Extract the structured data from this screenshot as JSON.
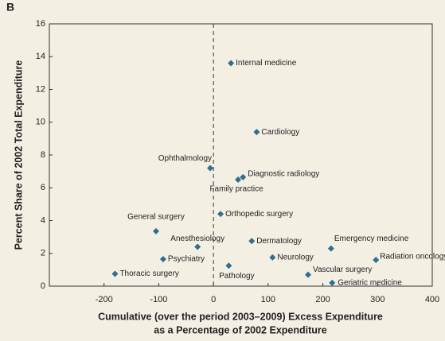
{
  "chart_data": {
    "type": "scatter",
    "panel": "B",
    "y_label": "Percent Share of 2002 Total Expenditure",
    "x_label": [
      "Cumulative (over the period 2003–2009) Excess Expenditure",
      "as a Percentage of 2002 Expenditure"
    ],
    "labels": [
      "Internal medicine",
      "Cardiology",
      "Ophthalmology",
      "Diagnostic radiology",
      "Family practice",
      "Orthopedic surgery",
      "General surgery",
      "Anesthesiology",
      "Dermatology",
      "Emergency medicine",
      "Radiation oncology",
      "Psychiatry",
      "Neurology",
      "Pathology",
      "Thoracic surgery",
      "Vascular surgery",
      "Geriatric medicine"
    ],
    "x": [
      32,
      79,
      -6,
      54,
      45,
      13,
      -105,
      -29,
      70,
      215,
      297,
      -92,
      108,
      28,
      -180,
      173,
      217
    ],
    "values": [
      13.6,
      9.4,
      7.2,
      6.65,
      6.5,
      4.4,
      3.35,
      2.4,
      2.75,
      2.3,
      1.6,
      1.65,
      1.75,
      1.25,
      0.75,
      0.7,
      0.2
    ],
    "color": "#2f6e8f",
    "xlim": [
      -300,
      400
    ],
    "xticks": [
      -200,
      -100,
      0,
      100,
      200,
      300,
      400
    ],
    "ylim": [
      0,
      16
    ],
    "yticks": [
      0,
      2,
      4,
      6,
      8,
      10,
      12,
      14,
      16
    ],
    "vline": 0
  }
}
